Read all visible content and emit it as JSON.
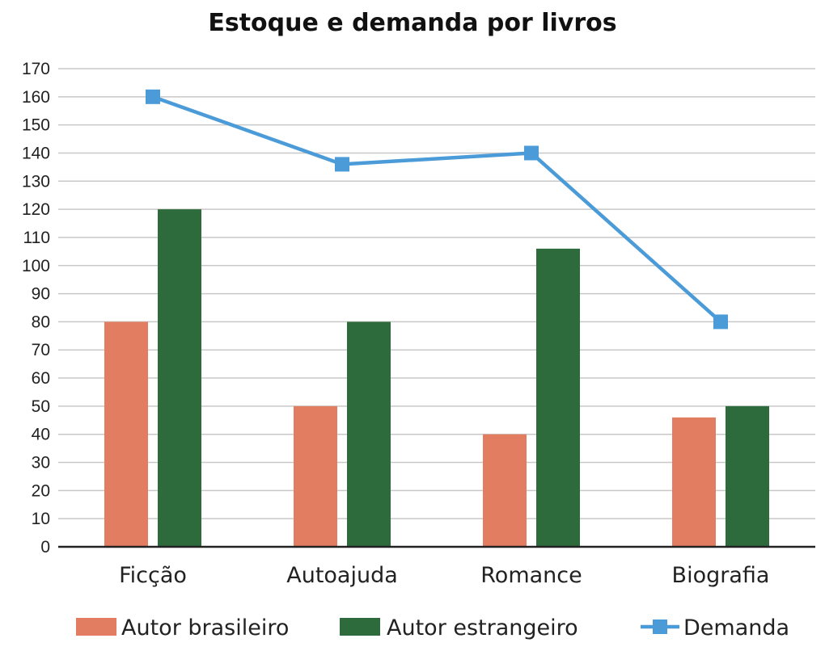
{
  "chart_data": {
    "type": "bar",
    "title": "Estoque e demanda por livros",
    "categories": [
      "Ficção",
      "Autoajuda",
      "Romance",
      "Biografia"
    ],
    "series": [
      {
        "name": "Autor brasileiro",
        "type": "bar",
        "color": "#e37d61",
        "values": [
          80,
          50,
          40,
          46
        ]
      },
      {
        "name": "Autor estrangeiro",
        "type": "bar",
        "color": "#2e6b3c",
        "values": [
          120,
          80,
          106,
          50
        ]
      },
      {
        "name": "Demanda",
        "type": "line",
        "color": "#4a9bd8",
        "marker": "square",
        "values": [
          160,
          136,
          140,
          80
        ]
      }
    ],
    "ylim": [
      0,
      170
    ],
    "yticks": [
      0,
      10,
      20,
      30,
      40,
      50,
      60,
      70,
      80,
      90,
      100,
      110,
      120,
      130,
      140,
      150,
      160,
      170
    ],
    "xlabel": "",
    "ylabel": "",
    "grid": true,
    "legend_position": "bottom"
  }
}
